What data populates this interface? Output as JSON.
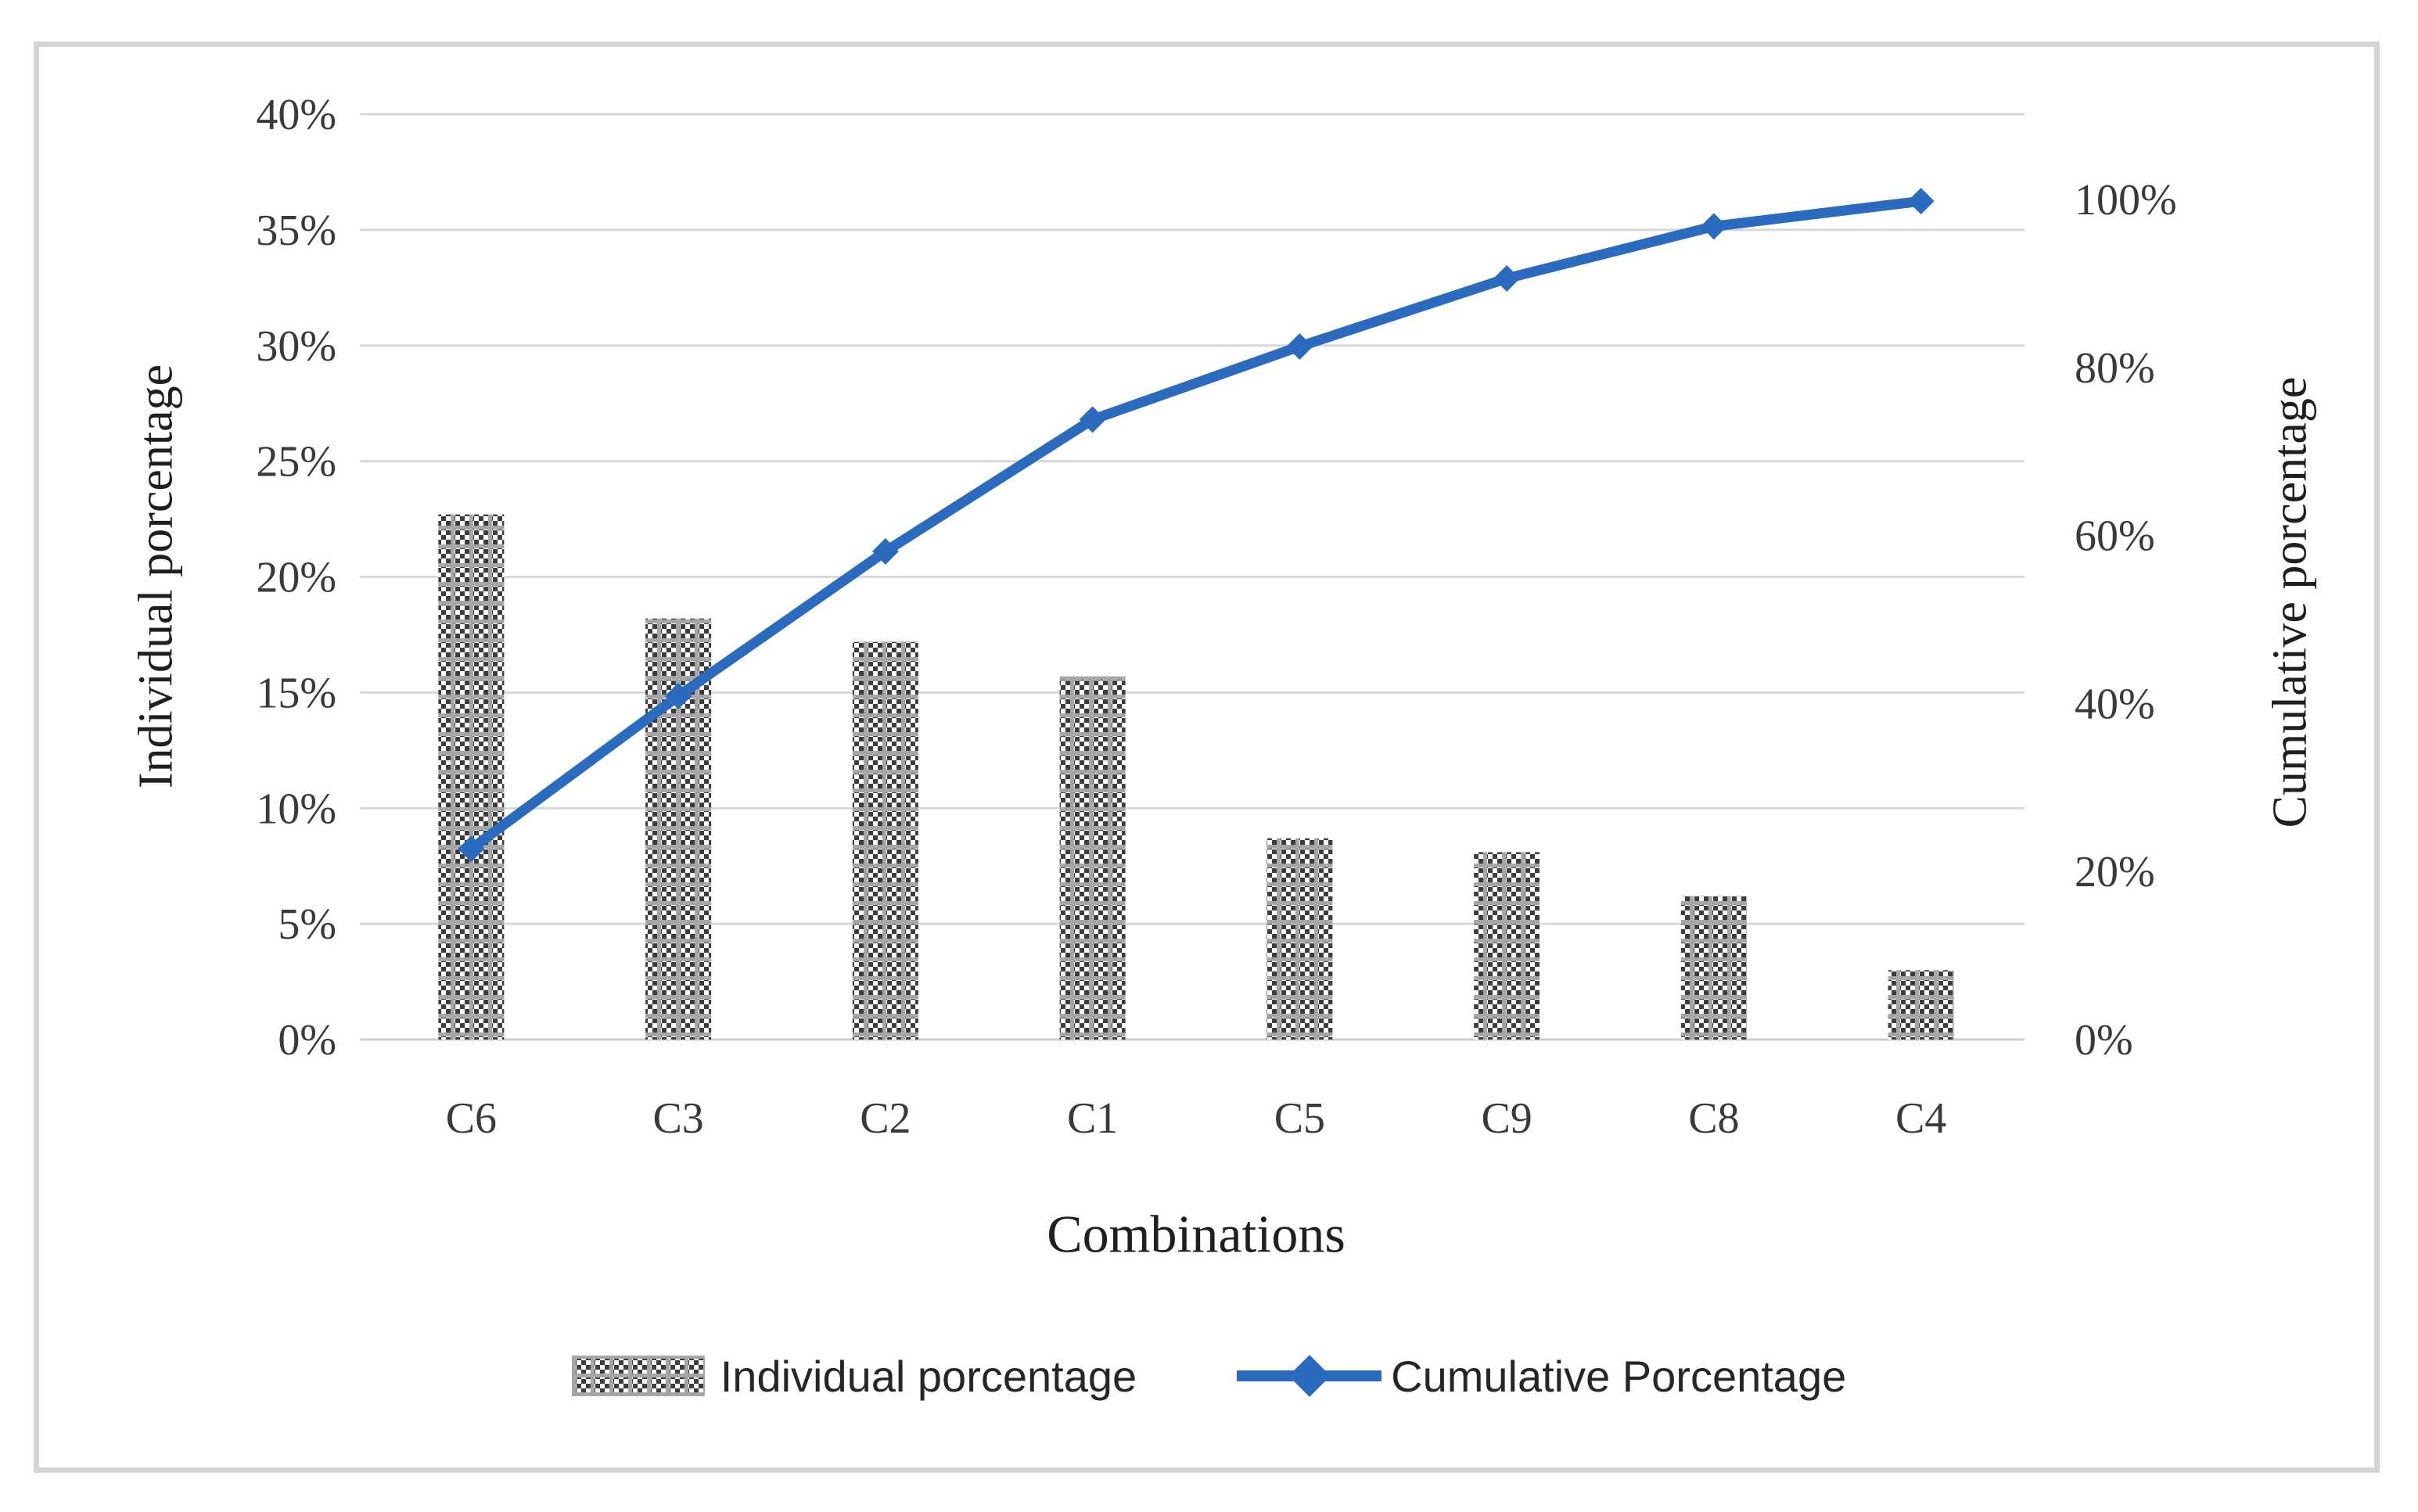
{
  "chart_data": {
    "type": "bar",
    "subtype": "pareto-combo",
    "title": "",
    "xlabel": "Combinations",
    "ylabel_left": "Individual  porcentage",
    "ylabel_right": "Cumulative porcentage",
    "categories": [
      "C6",
      "C3",
      "C2",
      "C1",
      "C5",
      "C9",
      "C8",
      "C4"
    ],
    "series": [
      {
        "name": "Individual porcentage",
        "type": "bar",
        "axis": "left",
        "values": [
          22.7,
          18.2,
          17.2,
          15.7,
          8.7,
          8.1,
          6.2,
          3.0
        ]
      },
      {
        "name": "Cumulative Porcentage",
        "type": "line",
        "axis": "right",
        "values": [
          22.7,
          40.9,
          58.1,
          73.8,
          82.5,
          90.6,
          96.8,
          99.8
        ]
      }
    ],
    "y_left_axis": {
      "min": 0,
      "max": 40,
      "step": 5,
      "ticks": [
        "0%",
        "5%",
        "10%",
        "15%",
        "20%",
        "25%",
        "30%",
        "35%",
        "40%"
      ]
    },
    "y_right_axis": {
      "min": 0,
      "max": 100,
      "step": 20,
      "ticks": [
        "0%",
        "20%",
        "40%",
        "60%",
        "80%",
        "100%"
      ]
    },
    "grid": true,
    "legend_position": "bottom",
    "colors": {
      "line": "#2a6bc0",
      "bar_pattern_dark": "#3d3d3d",
      "bar_pattern_grid": "#a6a6a6",
      "bar_pattern_bg": "#ffffff",
      "gridline": "#d9d9d9",
      "baseline": "#cccccc",
      "tick_text": "#3a3a3a",
      "title_text": "#1f1f1f",
      "frame_border": "#d5d5d5"
    }
  },
  "legend": {
    "items": [
      {
        "label": "Individual porcentage",
        "swatch": "checker-pattern-swatch"
      },
      {
        "label": "Cumulative Porcentage",
        "swatch": "line-diamond-swatch"
      }
    ]
  }
}
